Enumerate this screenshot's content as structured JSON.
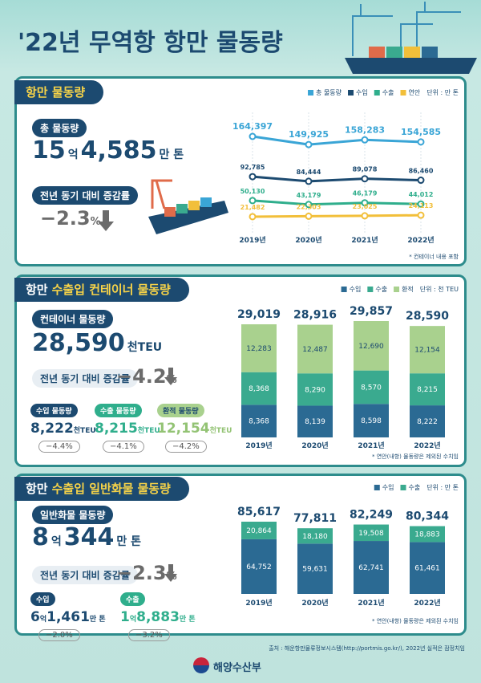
{
  "title": "'22년 무역항 항만 물동량",
  "sections": [
    {
      "heading": [
        "항만 물동량"
      ],
      "kpi_label": "총 물동량",
      "kpi": [
        "15",
        "억",
        "4,585",
        "만 톤"
      ],
      "change_label": "전년 동기 대비 증감률",
      "change": [
        "−2.3",
        "%"
      ]
    },
    {
      "heading": [
        "항만",
        "수출입 컨테이너",
        "물동량"
      ],
      "kpi_label": "컨테이너 물동량",
      "kpi": [
        "28,590",
        "천TEU"
      ],
      "change_label": "전년 동기 대비 증감률",
      "change": [
        "−4.2",
        "%"
      ],
      "subs": [
        {
          "label": "수입 물동량",
          "value": [
            "8,222",
            "천TEU"
          ],
          "change": [
            "−4.4",
            "%"
          ]
        },
        {
          "label": "수출 물동량",
          "value": [
            "8,215",
            "천TEU"
          ],
          "change": [
            "−4.1",
            "%"
          ]
        },
        {
          "label": "환적 물동량",
          "value": [
            "12,154",
            "천TEU"
          ],
          "change": [
            "−4.2",
            "%"
          ]
        }
      ]
    },
    {
      "heading": [
        "항만",
        "수출입 일반화물",
        "물동량"
      ],
      "kpi_label": "일반화물 물동량",
      "kpi": [
        "8",
        "억",
        "344",
        "만 톤"
      ],
      "change_label": "전년 동기 대비 증감률",
      "change": [
        "−2.3",
        "%"
      ],
      "subs": [
        {
          "label": "수입",
          "value": [
            "6",
            "억",
            "1,461",
            "만 톤"
          ],
          "change": [
            "−2.0",
            "%"
          ]
        },
        {
          "label": "수출",
          "value": [
            "1",
            "억",
            "8,883",
            "만 톤"
          ],
          "change": [
            "−3.2",
            "%"
          ]
        }
      ]
    }
  ],
  "footer": {
    "source": "출처 : 해운항만물류정보시스템(http://portmis.go.kr/), 2022년 실적은 잠정치임",
    "ministry": "해양수산부"
  },
  "chart_data": [
    {
      "type": "line",
      "unit": "단위 : 만 톤",
      "note": "* 컨테이너 내용 포함",
      "categories": [
        "2019년",
        "2020년",
        "2021년",
        "2022년"
      ],
      "series": [
        {
          "name": "총 물동량",
          "color": "#3aa5d6",
          "values": [
            164397,
            149925,
            158283,
            154585
          ],
          "value_labels": [
            "164,397",
            "149,925",
            "158,283",
            "154,585"
          ]
        },
        {
          "name": "수입",
          "color": "#1c4a70",
          "values": [
            92785,
            84444,
            89078,
            86460
          ],
          "value_labels": [
            "92,785",
            "84,444",
            "89,078",
            "86,460"
          ]
        },
        {
          "name": "수출",
          "color": "#2fae8c",
          "values": [
            50130,
            43179,
            46179,
            44012
          ],
          "value_labels": [
            "50,130",
            "43,179",
            "46,179",
            "44,012"
          ]
        },
        {
          "name": "연안",
          "color": "#f2bf3a",
          "values": [
            21482,
            22303,
            23025,
            24113
          ],
          "value_labels": [
            "21,482",
            "22,303",
            "23,025",
            "24,113"
          ]
        }
      ]
    },
    {
      "type": "stacked_bar",
      "unit": "단위 : 천 TEU",
      "note": "* 연안(내항) 물동량은 제외된 수치임",
      "categories": [
        "2019년",
        "2020년",
        "2021년",
        "2022년"
      ],
      "series": [
        {
          "name": "수입",
          "color": "#2b6a93",
          "values": [
            8368,
            8139,
            8598,
            8222
          ],
          "value_labels": [
            "8,368",
            "8,139",
            "8,598",
            "8,222"
          ]
        },
        {
          "name": "수출",
          "color": "#3aaa8f",
          "values": [
            8368,
            8290,
            8570,
            8215
          ],
          "value_labels": [
            "8,368",
            "8,290",
            "8,570",
            "8,215"
          ]
        },
        {
          "name": "환적",
          "color": "#a9d18e",
          "values": [
            12283,
            12487,
            12690,
            12154
          ],
          "value_labels": [
            "12,283",
            "12,487",
            "12,690",
            "12,154"
          ]
        }
      ],
      "totals": [
        29019,
        28916,
        29857,
        28590
      ],
      "total_labels": [
        "29,019",
        "28,916",
        "29,857",
        "28,590"
      ]
    },
    {
      "type": "stacked_bar",
      "unit": "단위 : 만 톤",
      "note": "* 연안(내항) 물동량은 제외된 수치임",
      "categories": [
        "2019년",
        "2020년",
        "2021년",
        "2022년"
      ],
      "series": [
        {
          "name": "수입",
          "color": "#2b6a93",
          "values": [
            64752,
            59631,
            62741,
            61461
          ],
          "value_labels": [
            "64,752",
            "59,631",
            "62,741",
            "61,461"
          ]
        },
        {
          "name": "수출",
          "color": "#3aaa8f",
          "values": [
            20864,
            18180,
            19508,
            18883
          ],
          "value_labels": [
            "20,864",
            "18,180",
            "19,508",
            "18,883"
          ]
        }
      ],
      "totals": [
        85617,
        77811,
        82249,
        80344
      ],
      "total_labels": [
        "85,617",
        "77,811",
        "82,249",
        "80,344"
      ]
    }
  ]
}
